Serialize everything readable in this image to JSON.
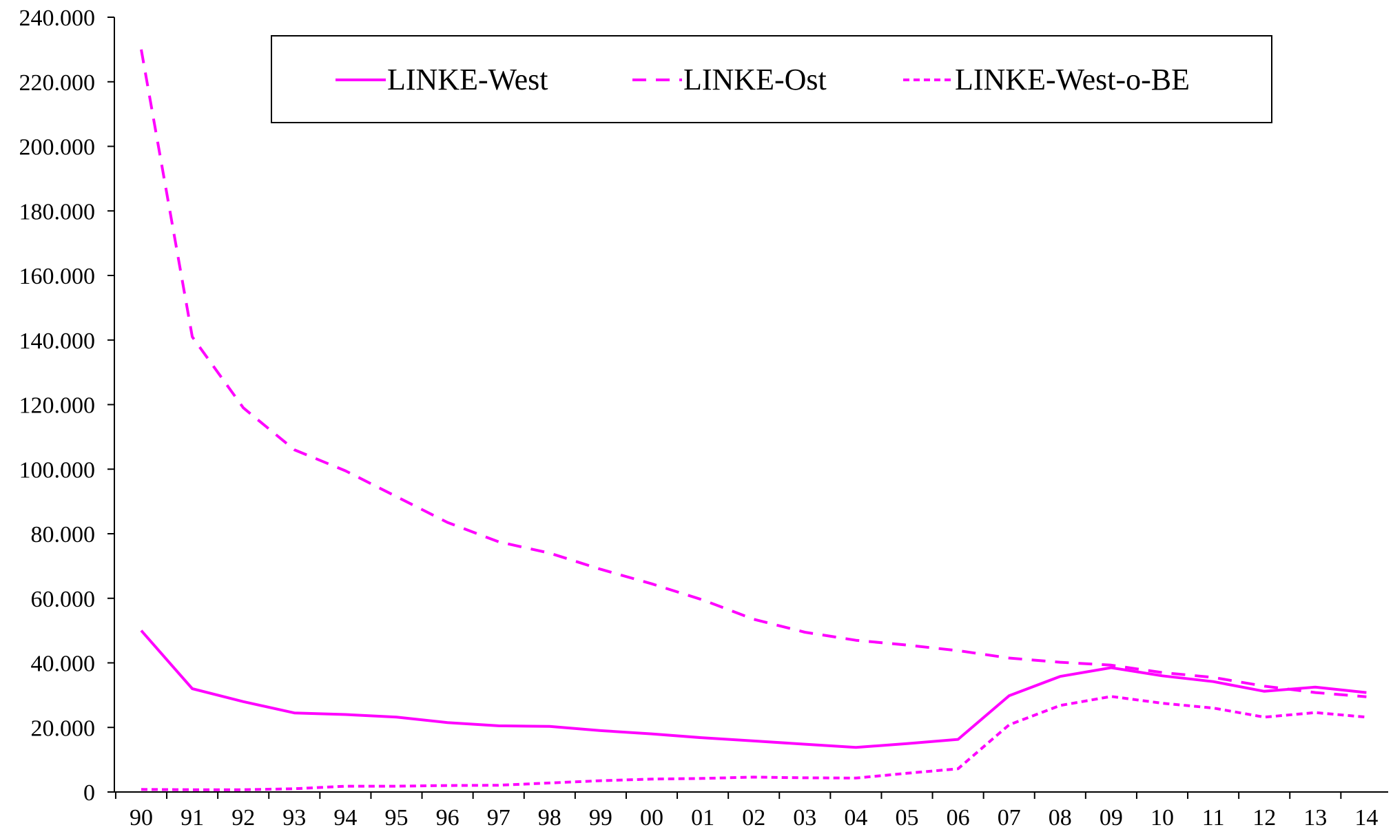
{
  "chart_data": {
    "type": "line",
    "title": "",
    "xlabel": "",
    "ylabel": "",
    "categories": [
      "90",
      "91",
      "92",
      "93",
      "94",
      "95",
      "96",
      "97",
      "98",
      "99",
      "00",
      "01",
      "02",
      "03",
      "04",
      "05",
      "06",
      "07",
      "08",
      "09",
      "10",
      "11",
      "12",
      "13",
      "14"
    ],
    "ylim": [
      0,
      240000
    ],
    "yticks": [
      0,
      20000,
      40000,
      60000,
      80000,
      100000,
      120000,
      140000,
      160000,
      180000,
      200000,
      220000,
      240000
    ],
    "ytick_labels": [
      "0",
      "20.000",
      "40.000",
      "60.000",
      "80.000",
      "100.000",
      "120.000",
      "140.000",
      "160.000",
      "180.000",
      "200.000",
      "220.000",
      "240.000"
    ],
    "grid": false,
    "legend_position": "top",
    "series": [
      {
        "name": "LINKE-West",
        "style": "solid",
        "color": "#ff00ff",
        "values": [
          50000,
          32000,
          28000,
          24500,
          24000,
          23200,
          21500,
          20500,
          20300,
          19000,
          18000,
          16800,
          15800,
          14800,
          13800,
          15000,
          16300,
          29800,
          35800,
          38500,
          36000,
          34200,
          31200,
          32500,
          30800
        ]
      },
      {
        "name": "LINKE-Ost",
        "style": "dashed",
        "color": "#ff00ff",
        "values": [
          230000,
          141000,
          119000,
          106000,
          99500,
          91500,
          83500,
          77500,
          74000,
          69000,
          64500,
          59500,
          53500,
          49500,
          47000,
          45500,
          43800,
          41500,
          40200,
          39300,
          37000,
          35500,
          32800,
          30800,
          29500
        ]
      },
      {
        "name": "LINKE-West-o-BE",
        "style": "dotted",
        "color": "#ff00ff",
        "values": [
          800,
          700,
          700,
          1000,
          1800,
          1800,
          2000,
          2100,
          2800,
          3500,
          4000,
          4200,
          4600,
          4400,
          4300,
          5800,
          7200,
          20800,
          26800,
          29600,
          27500,
          26000,
          23200,
          24600,
          23200
        ]
      }
    ]
  }
}
